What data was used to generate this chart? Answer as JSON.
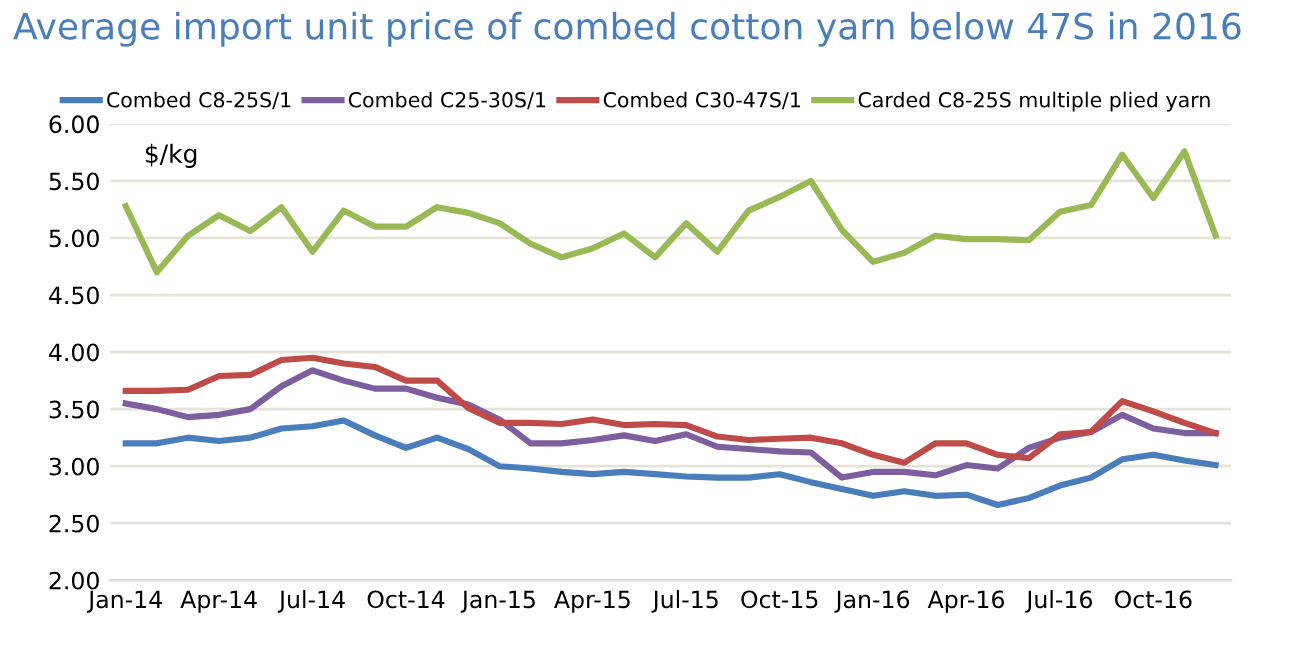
{
  "chart_data": {
    "type": "line",
    "title": "Average import unit price of combed cotton yarn below 47S in 2016",
    "ylabel": "$/kg",
    "categories": [
      "Jan-14",
      null,
      null,
      "Apr-14",
      null,
      null,
      "Jul-14",
      null,
      null,
      "Oct-14",
      null,
      null,
      "Jan-15",
      null,
      null,
      "Apr-15",
      null,
      null,
      "Jul-15",
      null,
      null,
      "Oct-15",
      null,
      null,
      "Jan-16",
      null,
      null,
      "Apr-16",
      null,
      null,
      "Jul-16",
      null,
      null,
      "Oct-16",
      null,
      null
    ],
    "series": [
      {
        "name": "Combed C8-25S/1",
        "color": "#4a7ebb",
        "values": [
          3.2,
          3.2,
          3.25,
          3.22,
          3.25,
          3.33,
          3.35,
          3.4,
          3.27,
          3.16,
          3.25,
          3.15,
          3.0,
          2.98,
          2.95,
          2.93,
          2.95,
          2.93,
          2.91,
          2.9,
          2.9,
          2.93,
          2.86,
          2.8,
          2.74,
          2.78,
          2.74,
          2.75,
          2.66,
          2.72,
          2.83,
          2.9,
          3.06,
          3.1,
          3.05,
          3.01
        ]
      },
      {
        "name": "Combed C25-30S/1",
        "color": "#7d5fa0",
        "values": [
          3.55,
          3.5,
          3.43,
          3.45,
          3.5,
          3.7,
          3.84,
          3.75,
          3.68,
          3.68,
          3.6,
          3.54,
          3.41,
          3.2,
          3.2,
          3.23,
          3.27,
          3.22,
          3.28,
          3.17,
          3.15,
          3.13,
          3.12,
          2.9,
          2.95,
          2.95,
          2.92,
          3.01,
          2.98,
          3.16,
          3.25,
          3.3,
          3.45,
          3.33,
          3.29,
          3.29
        ]
      },
      {
        "name": "Combed C30-47S/1",
        "color": "#be4b48",
        "values": [
          3.66,
          3.66,
          3.67,
          3.79,
          3.8,
          3.93,
          3.95,
          3.9,
          3.87,
          3.75,
          3.75,
          3.51,
          3.38,
          3.38,
          3.37,
          3.41,
          3.36,
          3.37,
          3.36,
          3.26,
          3.23,
          3.24,
          3.25,
          3.2,
          3.1,
          3.03,
          3.2,
          3.2,
          3.1,
          3.07,
          3.28,
          3.3,
          3.57,
          3.48,
          3.38,
          3.29
        ]
      },
      {
        "name": "Carded C8-25S multiple plied yarn",
        "color": "#98b954",
        "values": [
          5.28,
          4.7,
          5.02,
          5.2,
          5.06,
          5.27,
          4.88,
          5.24,
          5.1,
          5.1,
          5.27,
          5.22,
          5.13,
          4.95,
          4.83,
          4.91,
          5.04,
          4.83,
          5.13,
          4.88,
          5.24,
          5.36,
          5.5,
          5.07,
          4.79,
          4.87,
          5.02,
          4.99,
          4.99,
          4.98,
          5.23,
          5.29,
          5.73,
          5.35,
          5.76,
          5.02
        ]
      }
    ],
    "ylim": [
      2,
      6
    ],
    "yticks": [
      {
        "value": 2,
        "label": "2.00"
      },
      {
        "value": 2.5,
        "label": "2.50"
      },
      {
        "value": 3,
        "label": "3.00"
      },
      {
        "value": 3.5,
        "label": "3.50"
      },
      {
        "value": 4,
        "label": "4.00"
      },
      {
        "value": 4.5,
        "label": "4.50"
      },
      {
        "value": 5,
        "label": "5.00"
      },
      {
        "value": 5.5,
        "label": "5.50"
      },
      {
        "value": 6,
        "label": "6.00"
      }
    ],
    "grid": "y",
    "legend": "top",
    "marker": "none",
    "line_style": "solid"
  }
}
